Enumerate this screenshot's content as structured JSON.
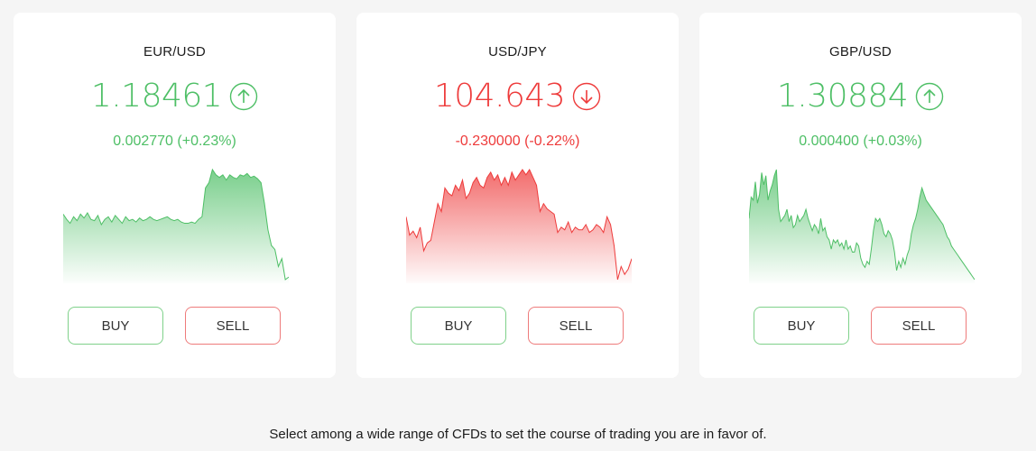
{
  "cards": [
    {
      "pair": "EUR/USD",
      "price": "1.18461",
      "change": "0.002770 (+0.23%)",
      "direction": "up",
      "arrow_icon": "arrow-up-circle-icon",
      "buy_label": "BUY",
      "sell_label": "SELL",
      "color": "#4ebf66",
      "chart_data": {
        "type": "area",
        "values": [
          62,
          58,
          55,
          60,
          57,
          62,
          59,
          63,
          58,
          57,
          61,
          54,
          58,
          60,
          56,
          61,
          58,
          55,
          60,
          57,
          58,
          56,
          59,
          57,
          58,
          60,
          58,
          57,
          58,
          59,
          60,
          58,
          57,
          58,
          56,
          55,
          55,
          56,
          55,
          58,
          60,
          82,
          86,
          96,
          92,
          90,
          92,
          88,
          92,
          90,
          89,
          92,
          91,
          93,
          90,
          91,
          89,
          86,
          70,
          50,
          38,
          35,
          22,
          28,
          12,
          14
        ]
      }
    },
    {
      "pair": "USD/JPY",
      "price": "104.643",
      "change": "-0.230000 (-0.22%)",
      "direction": "down",
      "arrow_icon": "arrow-down-circle-icon",
      "buy_label": "BUY",
      "sell_label": "SELL",
      "color": "#ee3b3b",
      "chart_data": {
        "type": "area",
        "values": [
          56,
          42,
          45,
          40,
          48,
          30,
          36,
          38,
          52,
          66,
          60,
          78,
          74,
          72,
          80,
          76,
          84,
          70,
          74,
          82,
          86,
          80,
          78,
          86,
          90,
          84,
          88,
          80,
          86,
          80,
          90,
          84,
          88,
          92,
          88,
          92,
          86,
          80,
          60,
          66,
          62,
          60,
          58,
          44,
          48,
          46,
          52,
          44,
          48,
          46,
          46,
          50,
          44,
          46,
          50,
          48,
          44,
          56,
          50,
          34,
          8,
          18,
          12,
          16,
          24
        ]
      }
    },
    {
      "pair": "GBP/USD",
      "price": "1.30884",
      "change": "0.000400 (+0.03%)",
      "direction": "up",
      "arrow_icon": "arrow-up-circle-icon",
      "buy_label": "BUY",
      "sell_label": "SELL",
      "color": "#4ebf66",
      "chart_data": {
        "type": "area",
        "values": [
          60,
          74,
          72,
          84,
          70,
          76,
          90,
          82,
          88,
          72,
          78,
          82,
          88,
          92,
          66,
          58,
          60,
          62,
          66,
          58,
          62,
          54,
          56,
          62,
          58,
          60,
          62,
          66,
          60,
          56,
          52,
          56,
          54,
          50,
          60,
          52,
          54,
          48,
          46,
          40,
          46,
          44,
          46,
          42,
          44,
          40,
          46,
          40,
          42,
          38,
          38,
          44,
          42,
          34,
          30,
          28,
          32,
          30,
          40,
          52,
          60,
          58,
          60,
          56,
          50,
          48,
          52,
          50,
          46,
          38,
          26,
          32,
          28,
          34,
          30,
          36,
          40,
          50,
          56,
          60,
          66,
          74,
          80,
          76,
          72,
          70,
          68,
          66,
          64,
          62,
          60,
          58,
          56,
          52,
          48,
          46,
          42,
          40,
          38,
          36,
          34,
          32,
          30,
          28,
          26,
          24,
          22,
          20
        ]
      }
    }
  ],
  "footer": {
    "text": "Select among a wide range of CFDs to set the course of trading you are in favor of."
  }
}
